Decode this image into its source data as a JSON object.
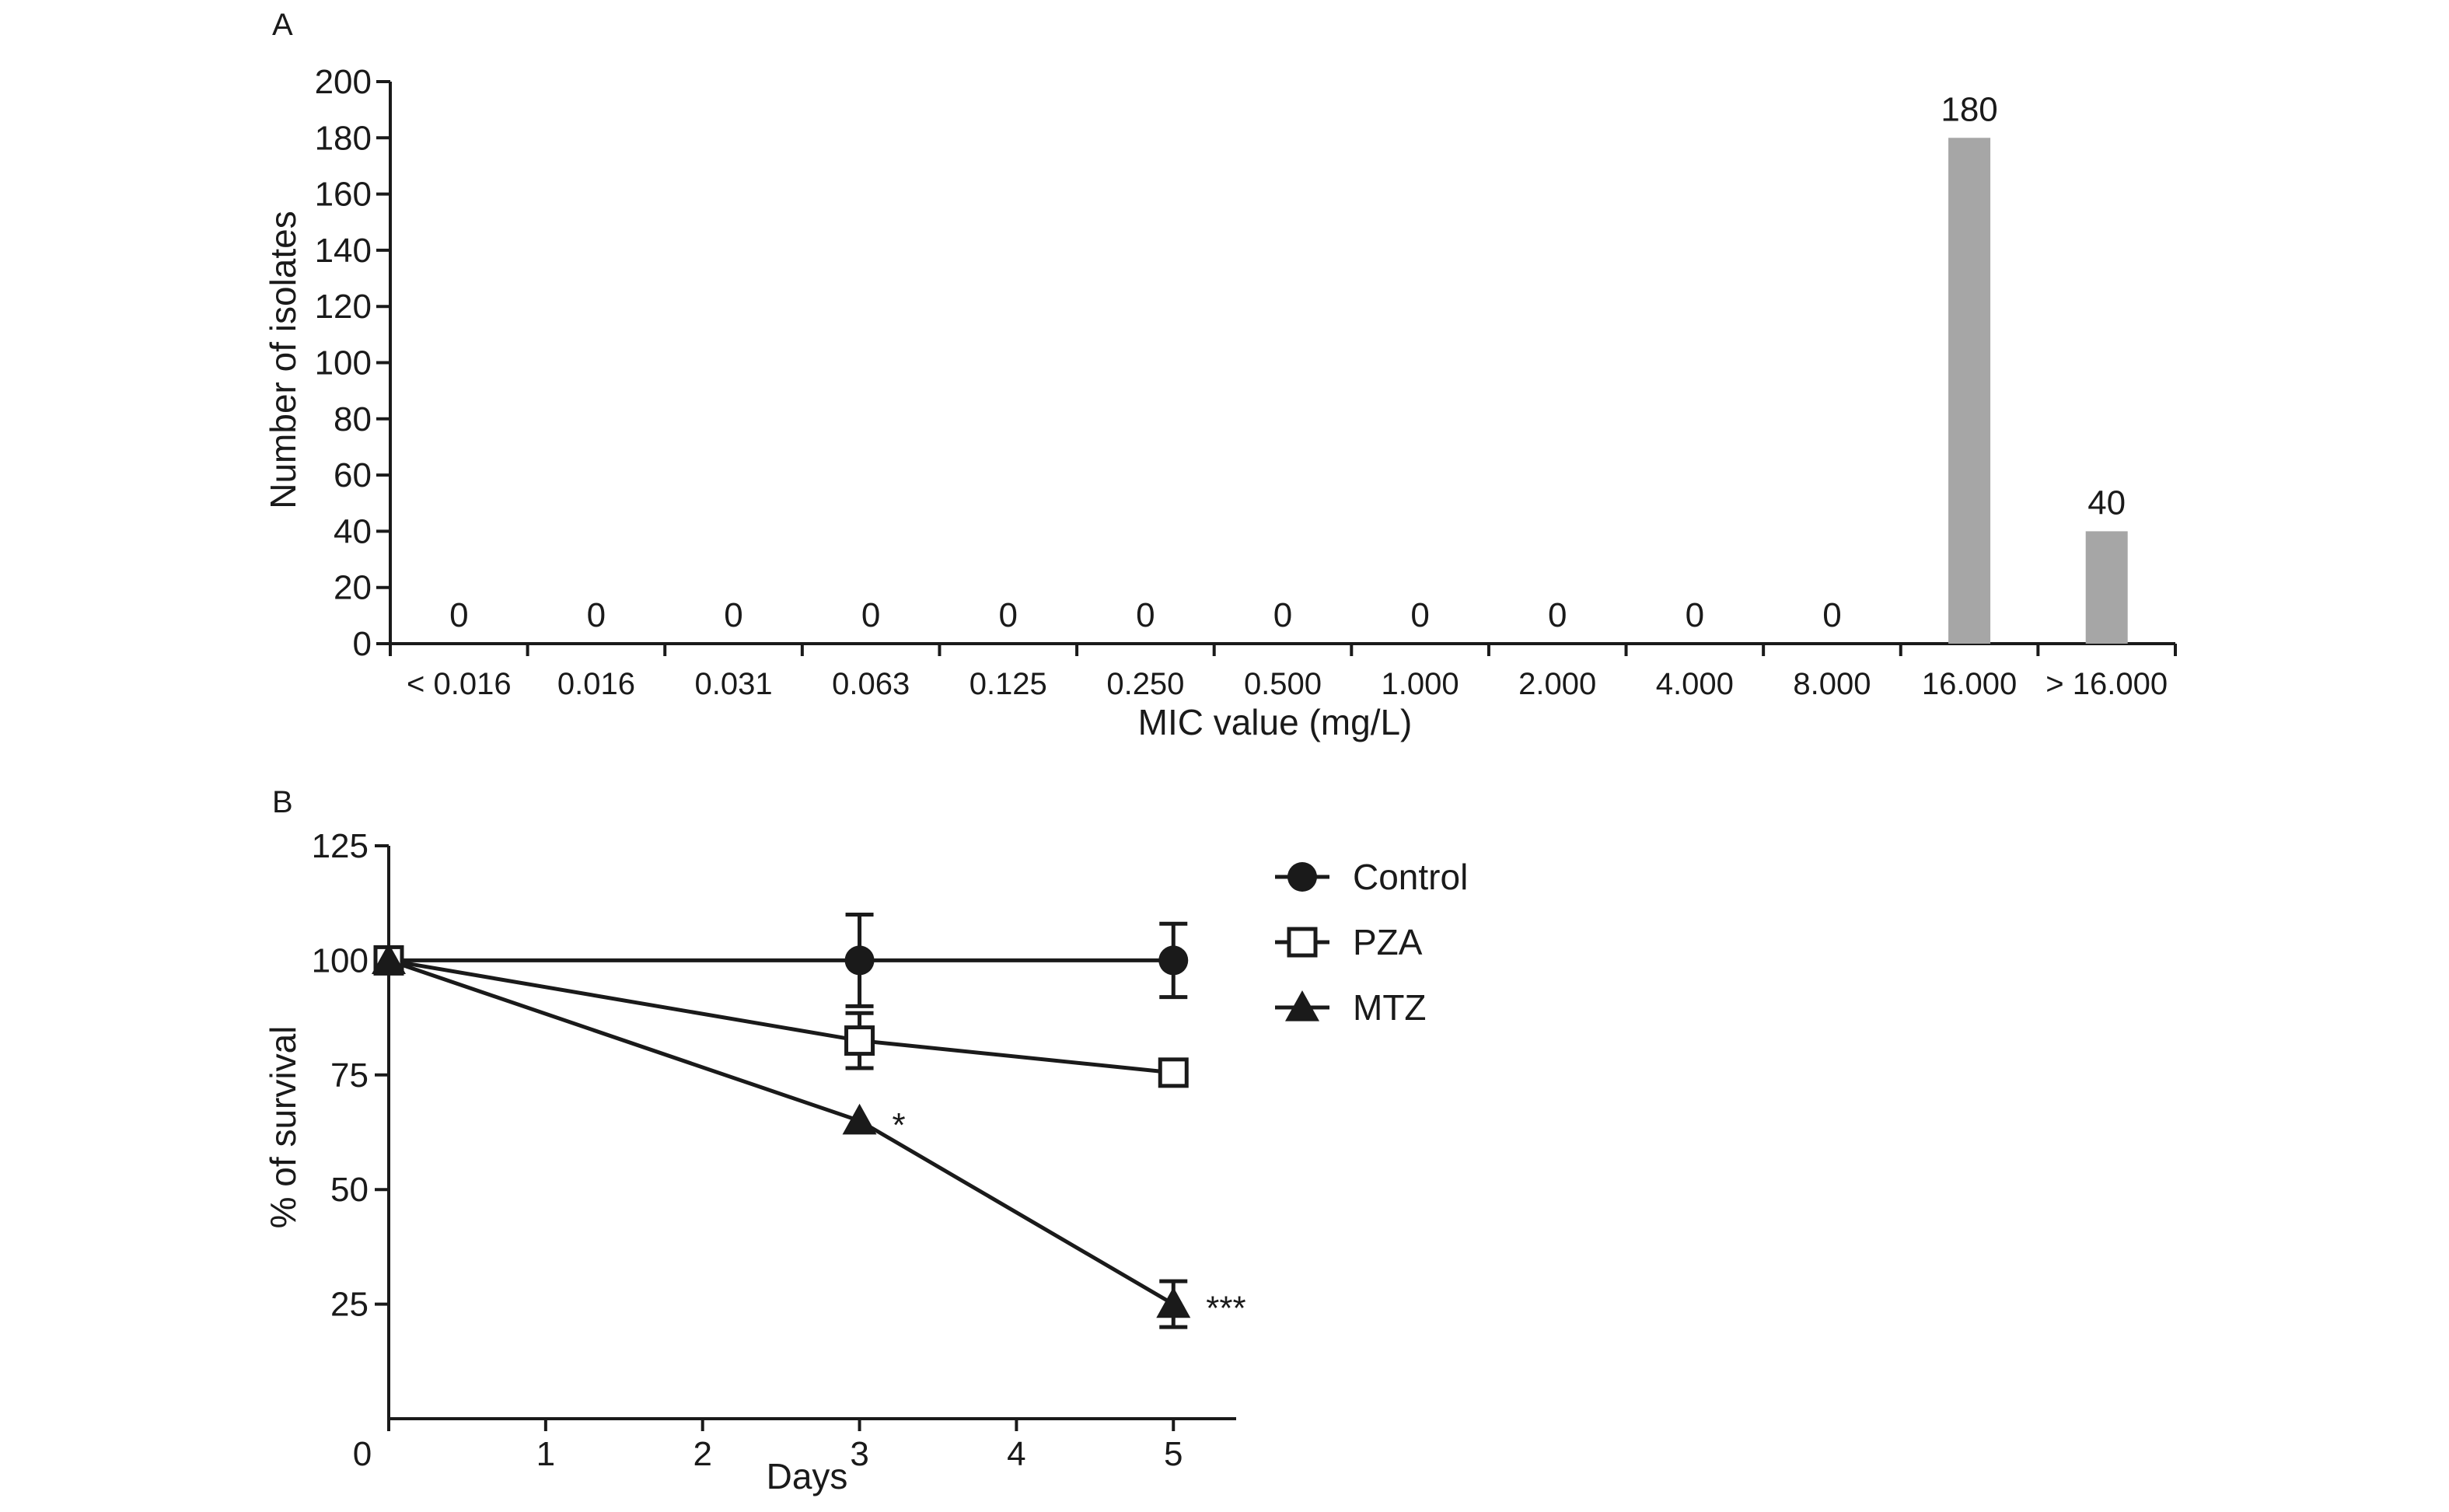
{
  "chart_data": [
    {
      "type": "bar",
      "panel_label": "A",
      "title": "",
      "xlabel": "MIC value (mg/L)",
      "ylabel": "Number of isolates",
      "ylim": [
        0,
        200
      ],
      "yticks": [
        0,
        20,
        40,
        60,
        80,
        100,
        120,
        140,
        160,
        180,
        200
      ],
      "categories": [
        "< 0.016",
        "0.016",
        "0.031",
        "0.063",
        "0.125",
        "0.250",
        "0.500",
        "1.000",
        "2.000",
        "4.000",
        "8.000",
        "16.000",
        "> 16.000"
      ],
      "values": [
        0,
        0,
        0,
        0,
        0,
        0,
        0,
        0,
        0,
        0,
        0,
        180,
        40
      ],
      "bar_color": "#a6a6a6",
      "grid": false
    },
    {
      "type": "line",
      "panel_label": "B",
      "title": "",
      "xlabel": "Days",
      "ylabel": "% of survival",
      "xlim": [
        0,
        5.4
      ],
      "ylim": [
        0,
        125
      ],
      "xticks": [
        0,
        1,
        2,
        3,
        4,
        5
      ],
      "yticks": [
        25,
        50,
        75,
        100,
        125
      ],
      "legend_position": "right",
      "grid": false,
      "series": [
        {
          "name": "Control",
          "marker": "filled-circle",
          "x": [
            0,
            3,
            5
          ],
          "y": [
            100,
            100,
            100
          ],
          "err": [
            0,
            10,
            8
          ],
          "annotations": [
            "",
            "",
            ""
          ]
        },
        {
          "name": "PZA",
          "marker": "open-square",
          "x": [
            0,
            3,
            5
          ],
          "y": [
            100,
            82.5,
            75.5
          ],
          "err": [
            0,
            6,
            2
          ],
          "annotations": [
            "",
            "",
            ""
          ]
        },
        {
          "name": "MTZ",
          "marker": "filled-triangle",
          "x": [
            0,
            3,
            5
          ],
          "y": [
            100,
            65,
            25
          ],
          "err": [
            0,
            0,
            5
          ],
          "annotations": [
            "",
            "*",
            "***"
          ]
        }
      ]
    }
  ]
}
